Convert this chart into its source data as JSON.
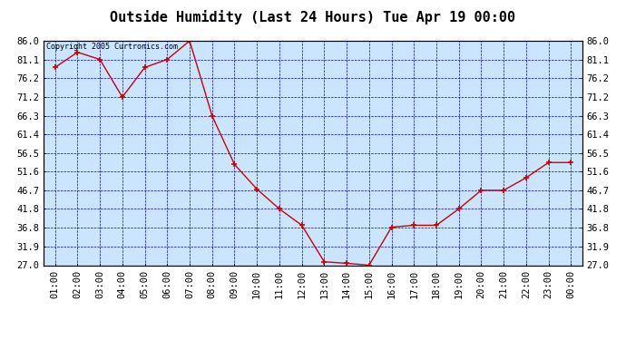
{
  "title": "Outside Humidity (Last 24 Hours) Tue Apr 19 00:00",
  "copyright_text": "Copyright 2005 Curtronics.com",
  "x_labels": [
    "01:00",
    "02:00",
    "03:00",
    "04:00",
    "05:00",
    "06:00",
    "07:00",
    "08:00",
    "09:00",
    "10:00",
    "11:00",
    "12:00",
    "13:00",
    "14:00",
    "15:00",
    "16:00",
    "17:00",
    "18:00",
    "19:00",
    "20:00",
    "21:00",
    "22:00",
    "23:00",
    "00:00"
  ],
  "x_values": [
    1,
    2,
    3,
    4,
    5,
    6,
    7,
    8,
    9,
    10,
    11,
    12,
    13,
    14,
    15,
    16,
    17,
    18,
    19,
    20,
    21,
    22,
    23,
    24
  ],
  "y_values": [
    79.0,
    83.0,
    81.1,
    71.2,
    79.0,
    81.1,
    86.0,
    66.3,
    53.5,
    47.0,
    41.8,
    37.5,
    27.9,
    27.5,
    27.0,
    37.0,
    37.5,
    37.5,
    41.8,
    46.7,
    46.7,
    50.0,
    54.0,
    54.0
  ],
  "y_ticks": [
    27.0,
    31.9,
    36.8,
    41.8,
    46.7,
    51.6,
    56.5,
    61.4,
    66.3,
    71.2,
    76.2,
    81.1,
    86.0
  ],
  "y_min": 27.0,
  "y_max": 86.0,
  "line_color": "#cc0000",
  "marker_color": "#cc0000",
  "plot_bg_color": "#cce5ff",
  "outer_bg_color": "#ffffff",
  "border_color": "#000000",
  "grid_color": "#0000cc",
  "title_fontsize": 11,
  "copyright_fontsize": 6,
  "tick_fontsize": 7.5
}
